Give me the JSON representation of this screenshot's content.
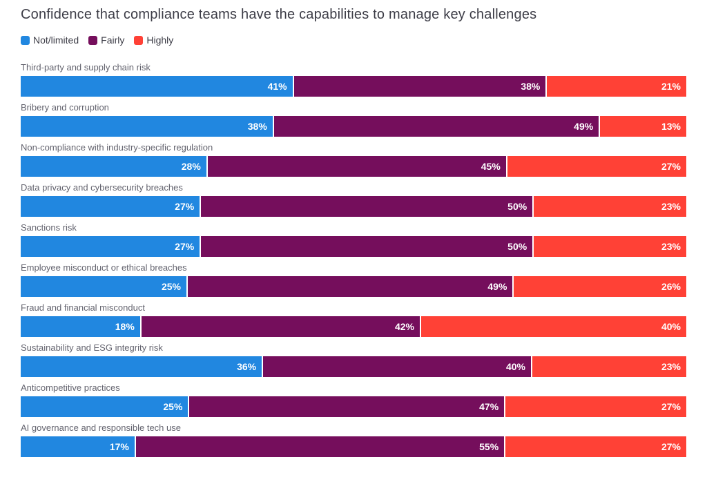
{
  "title": "Confidence that compliance teams have the capabilities to manage key challenges",
  "colors": {
    "not_limited": "#2187E0",
    "fairly": "#750E5C",
    "highly": "#FF4136",
    "title_text": "#3c3c46",
    "category_text": "#63636e",
    "value_text": "#ffffff",
    "background": "#ffffff"
  },
  "legend": {
    "items": [
      {
        "label": "Not/limited",
        "color": "#2187E0"
      },
      {
        "label": "Fairly",
        "color": "#750E5C"
      },
      {
        "label": "Highly",
        "color": "#FF4136"
      }
    ]
  },
  "chart_data": {
    "type": "bar",
    "orientation": "horizontal",
    "stacked": true,
    "value_suffix": "%",
    "title": "Confidence that compliance teams have the capabilities to manage key challenges",
    "categories": [
      "Third-party and supply chain risk",
      "Bribery and corruption",
      "Non-compliance with industry-specific regulation",
      "Data privacy and cybersecurity breaches",
      "Sanctions risk",
      "Employee misconduct or ethical breaches",
      "Fraud and financial misconduct",
      "Sustainability and ESG integrity risk",
      "Anticompetitive practices",
      "AI governance and responsible tech use"
    ],
    "series": [
      {
        "name": "Not/limited",
        "color": "#2187E0",
        "values": [
          41,
          38,
          28,
          27,
          27,
          25,
          18,
          36,
          25,
          17
        ]
      },
      {
        "name": "Fairly",
        "color": "#750E5C",
        "values": [
          38,
          49,
          45,
          50,
          50,
          49,
          42,
          40,
          47,
          55
        ]
      },
      {
        "name": "Highly",
        "color": "#FF4136",
        "values": [
          21,
          13,
          27,
          23,
          23,
          26,
          40,
          23,
          27,
          27
        ]
      }
    ],
    "xlim": [
      0,
      100
    ],
    "grid": false,
    "legend_position": "top-left",
    "value_labels": "inside-right"
  }
}
